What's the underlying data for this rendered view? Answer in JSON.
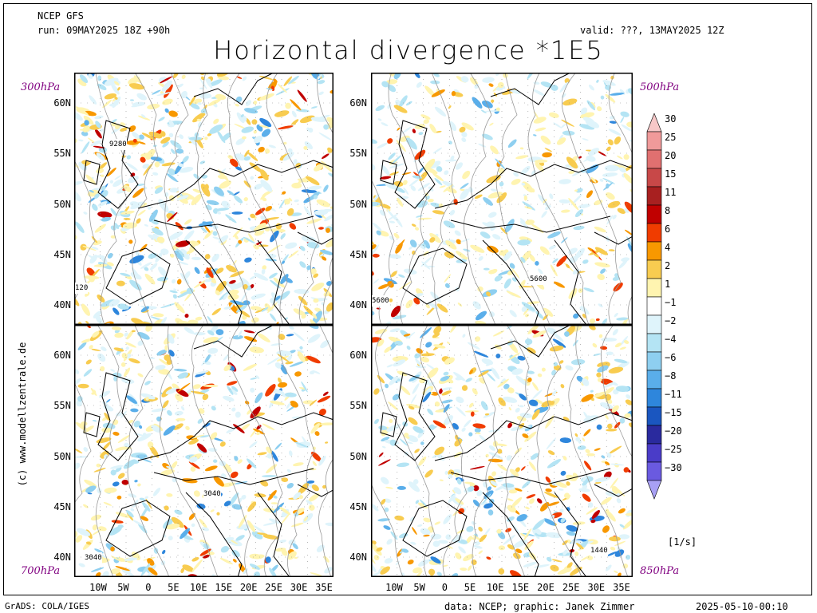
{
  "header": {
    "model": "NCEP GFS",
    "run": "run: 09MAY2025 18Z +90h",
    "valid": "valid: ???, 13MAY2025 12Z",
    "title": "Horizontal divergence *1E5"
  },
  "panels": [
    {
      "level": "300hPa",
      "contour_labels": [
        "9280",
        "120"
      ]
    },
    {
      "level": "500hPa",
      "contour_labels": [
        "5600",
        "5600"
      ]
    },
    {
      "level": "700hPa",
      "contour_labels": [
        "3040",
        "3040"
      ]
    },
    {
      "level": "850hPa",
      "contour_labels": [
        "1440"
      ]
    }
  ],
  "lat_labels": [
    "60N",
    "55N",
    "50N",
    "45N",
    "40N"
  ],
  "lon_labels": [
    "10W",
    "5W",
    "0",
    "5E",
    "10E",
    "15E",
    "20E",
    "25E",
    "30E",
    "35E"
  ],
  "colorbar": {
    "levels": [
      "30",
      "25",
      "20",
      "15",
      "11",
      "8",
      "6",
      "4",
      "2",
      "1",
      "-1",
      "-2",
      "-4",
      "-6",
      "-8",
      "-11",
      "-15",
      "-20",
      "-25",
      "-30"
    ],
    "colors": [
      "#f7c8c8",
      "#f09a9a",
      "#e07070",
      "#c84848",
      "#a82020",
      "#c00000",
      "#f03c00",
      "#f89800",
      "#f8cc50",
      "#fff4b0",
      "#ffffff",
      "#dff4fb",
      "#b4e4f4",
      "#8ecff0",
      "#5aaeea",
      "#2e86dc",
      "#1a56c0",
      "#2a2a9e",
      "#4a3cc8",
      "#6a5ae0",
      "#a8a0f4"
    ],
    "unit": "[1/s]"
  },
  "credit": "(c) www.modellzentrale.de",
  "footer": {
    "left": "GrADS: COLA/IGES",
    "middle": "data: NCEP; graphic: Janek Zimmer",
    "right": "2025-05-10-00:10"
  }
}
